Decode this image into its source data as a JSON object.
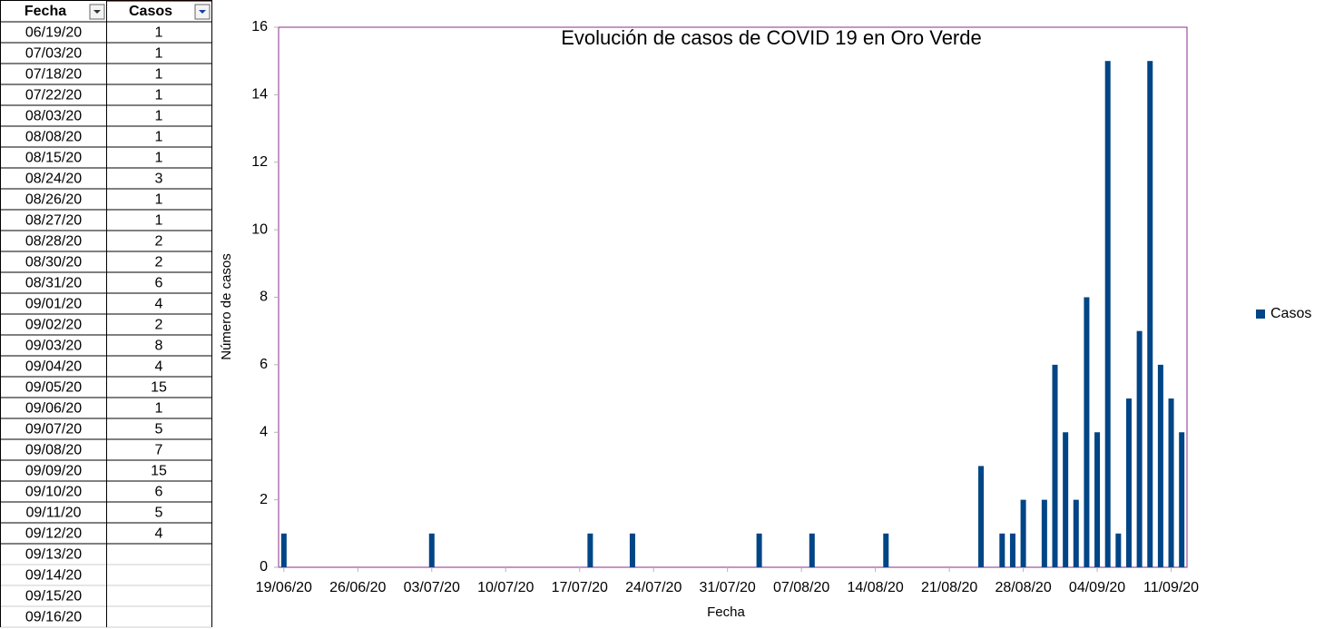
{
  "table": {
    "headers": [
      "Fecha",
      "Casos"
    ],
    "rows": [
      [
        "06/19/20",
        1
      ],
      [
        "07/03/20",
        1
      ],
      [
        "07/18/20",
        1
      ],
      [
        "07/22/20",
        1
      ],
      [
        "08/03/20",
        1
      ],
      [
        "08/08/20",
        1
      ],
      [
        "08/15/20",
        1
      ],
      [
        "08/24/20",
        3
      ],
      [
        "08/26/20",
        1
      ],
      [
        "08/27/20",
        1
      ],
      [
        "08/28/20",
        2
      ],
      [
        "08/30/20",
        2
      ],
      [
        "08/31/20",
        6
      ],
      [
        "09/01/20",
        4
      ],
      [
        "09/02/20",
        2
      ],
      [
        "09/03/20",
        8
      ],
      [
        "09/04/20",
        4
      ],
      [
        "09/05/20",
        15
      ],
      [
        "09/06/20",
        1
      ],
      [
        "09/07/20",
        5
      ],
      [
        "09/08/20",
        7
      ],
      [
        "09/09/20",
        15
      ],
      [
        "09/10/20",
        6
      ],
      [
        "09/11/20",
        5
      ],
      [
        "09/12/20",
        4
      ],
      [
        "09/13/20"
      ],
      [
        "09/14/20"
      ],
      [
        "09/15/20"
      ],
      [
        "09/16/20"
      ]
    ]
  },
  "chart_data": {
    "type": "bar",
    "title": "Evolución de casos de COVID 19 en Oro Verde",
    "x_label": "Fecha",
    "y_label": "Número de casos",
    "x": [
      "2020-06-19",
      "2020-07-03",
      "2020-07-18",
      "2020-07-22",
      "2020-08-03",
      "2020-08-08",
      "2020-08-15",
      "2020-08-24",
      "2020-08-26",
      "2020-08-27",
      "2020-08-28",
      "2020-08-30",
      "2020-08-31",
      "2020-09-01",
      "2020-09-02",
      "2020-09-03",
      "2020-09-04",
      "2020-09-05",
      "2020-09-06",
      "2020-09-07",
      "2020-09-08",
      "2020-09-09",
      "2020-09-10",
      "2020-09-11",
      "2020-09-12"
    ],
    "series": [
      {
        "name": "Casos",
        "color": "#004586",
        "values": [
          1,
          1,
          1,
          1,
          1,
          1,
          1,
          3,
          1,
          1,
          2,
          2,
          6,
          4,
          2,
          8,
          4,
          15,
          1,
          5,
          7,
          15,
          6,
          5,
          4
        ]
      }
    ],
    "xlim": [
      "2020-06-19",
      "2020-09-12"
    ],
    "xticks": [
      {
        "value": "2020-06-19",
        "label": "19/06/20"
      },
      {
        "value": "2020-06-26",
        "label": "26/06/20"
      },
      {
        "value": "2020-07-03",
        "label": "03/07/20"
      },
      {
        "value": "2020-07-10",
        "label": "10/07/20"
      },
      {
        "value": "2020-07-17",
        "label": "17/07/20"
      },
      {
        "value": "2020-07-24",
        "label": "24/07/20"
      },
      {
        "value": "2020-07-31",
        "label": "31/07/20"
      },
      {
        "value": "2020-08-07",
        "label": "07/08/20"
      },
      {
        "value": "2020-08-14",
        "label": "14/08/20"
      },
      {
        "value": "2020-08-21",
        "label": "21/08/20"
      },
      {
        "value": "2020-08-28",
        "label": "28/08/20"
      },
      {
        "value": "2020-09-04",
        "label": "04/09/20"
      },
      {
        "value": "2020-09-11",
        "label": "11/09/20"
      }
    ],
    "ylim": [
      0,
      16
    ],
    "yticks": [
      0,
      2,
      4,
      6,
      8,
      10,
      12,
      14,
      16
    ],
    "grid": false,
    "legend": "right"
  }
}
